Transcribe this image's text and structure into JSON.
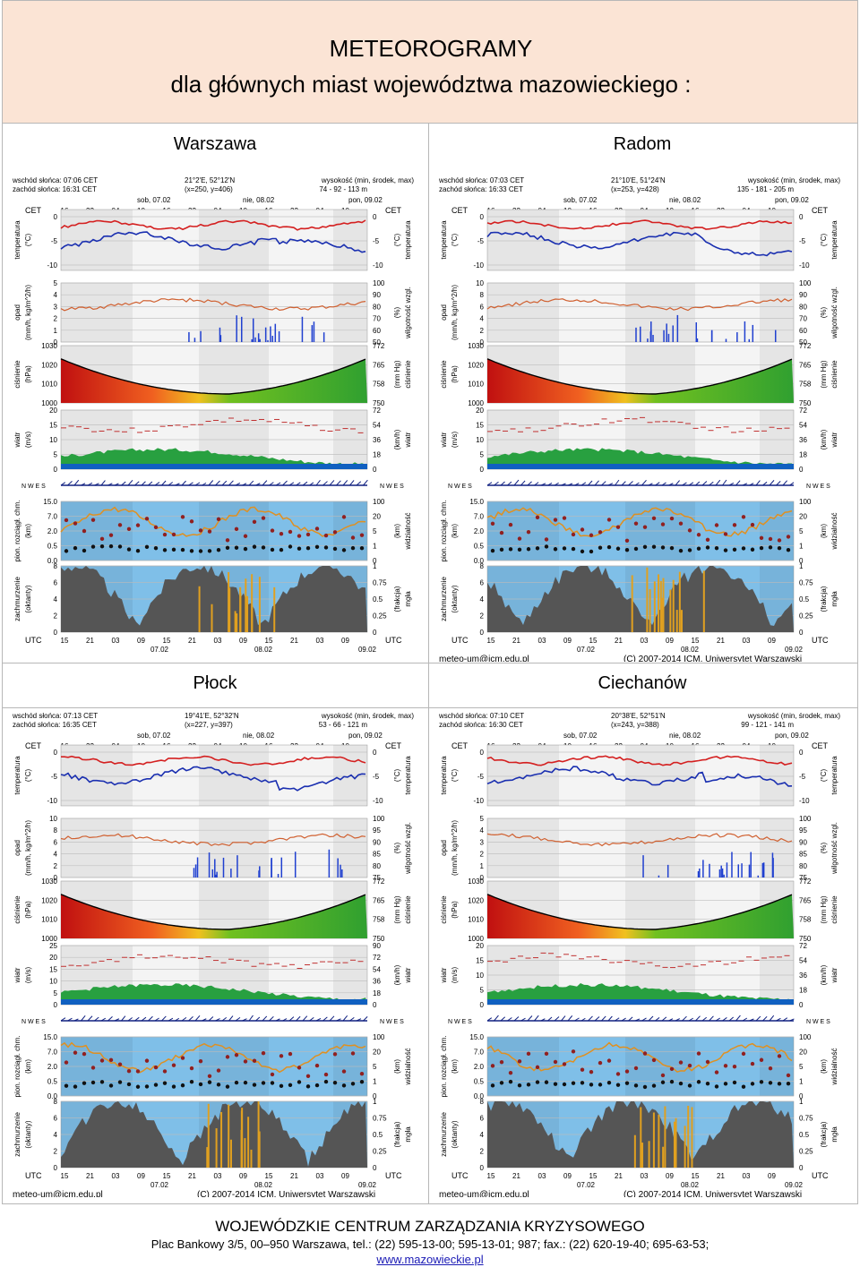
{
  "header": {
    "title": "METEOROGRAMY",
    "subtitle": "dla głównych miast województwa mazowieckiego :"
  },
  "cities": [
    {
      "name": "Warszawa",
      "sunrise": "wschód słońca: 07:06 CET",
      "sunset": "zachód słońca: 16:31 CET",
      "coords": "21°2'E, 52°12'N",
      "grid": "(x=250, y=406)",
      "alt_label": "wysokość (min, środek, max)",
      "alt": "74 - 92 - 113 m",
      "t_ticks": [
        "0",
        "-5",
        "-10"
      ],
      "p_ticks": [
        "5",
        "4",
        "3",
        "2",
        "1",
        "0"
      ],
      "h_ticks": [
        "100",
        "90",
        "80",
        "70",
        "60",
        "50"
      ],
      "w_ticks": [
        "20",
        "15",
        "10",
        "5",
        "0"
      ],
      "wk_ticks": [
        "72",
        "54",
        "36",
        "18",
        "0"
      ]
    },
    {
      "name": "Radom",
      "sunrise": "wschód słońca: 07:03 CET",
      "sunset": "zachód słońca: 16:33 CET",
      "coords": "21°10'E, 51°24'N",
      "grid": "(x=253, y=428)",
      "alt_label": "wysokość (min, środek, max)",
      "alt": "135 - 181 - 205 m",
      "t_ticks": [
        "0",
        "-5",
        "-10"
      ],
      "p_ticks": [
        "10",
        "8",
        "6",
        "4",
        "2",
        "0"
      ],
      "h_ticks": [
        "100",
        "90",
        "80",
        "70",
        "60",
        "50"
      ],
      "w_ticks": [
        "20",
        "15",
        "10",
        "5",
        "0"
      ],
      "wk_ticks": [
        "72",
        "54",
        "36",
        "18",
        "0"
      ]
    },
    {
      "name": "Płock",
      "sunrise": "wschód słońca: 07:13 CET",
      "sunset": "zachód słońca: 16:35 CET",
      "coords": "19°41'E, 52°32'N",
      "grid": "(x=227, y=397)",
      "alt_label": "wysokość (min, środek, max)",
      "alt": "53 - 66 - 121 m",
      "t_ticks": [
        "0",
        "-5",
        "-10"
      ],
      "p_ticks": [
        "10",
        "8",
        "6",
        "4",
        "2",
        "0"
      ],
      "h_ticks": [
        "100",
        "95",
        "90",
        "85",
        "80",
        "75"
      ],
      "w_ticks": [
        "25",
        "20",
        "15",
        "10",
        "5",
        "0"
      ],
      "wk_ticks": [
        "90",
        "72",
        "54",
        "36",
        "18",
        "0"
      ]
    },
    {
      "name": "Ciechanów",
      "sunrise": "wschód słońca: 07:10 CET",
      "sunset": "zachód słońca: 16:30 CET",
      "coords": "20°38'E, 52°51'N",
      "grid": "(x=243, y=388)",
      "alt_label": "wysokość (min, środek, max)",
      "alt": "99 - 121 - 141 m",
      "t_ticks": [
        "0",
        "-5",
        "-10"
      ],
      "p_ticks": [
        "5",
        "4",
        "3",
        "2",
        "1",
        "0"
      ],
      "h_ticks": [
        "100",
        "95",
        "90",
        "85",
        "80",
        "75"
      ],
      "w_ticks": [
        "20",
        "15",
        "10",
        "5",
        "0"
      ],
      "wk_ticks": [
        "72",
        "54",
        "36",
        "18",
        "0"
      ]
    }
  ],
  "common": {
    "cet": "CET",
    "utc": "UTC",
    "days_top": [
      "sob, 07.02",
      "nie, 08.02",
      "pon, 09.02"
    ],
    "hours_top": [
      "16",
      "22",
      "04",
      "10",
      "16",
      "22",
      "04",
      "10",
      "16",
      "22",
      "04",
      "10"
    ],
    "hours_bottom": [
      "15",
      "21",
      "03",
      "09",
      "15",
      "21",
      "03",
      "09",
      "15",
      "21",
      "03",
      "09"
    ],
    "days_bottom": [
      "07.02",
      "08.02",
      "09.02"
    ],
    "label_temp": "temperatura",
    "unit_c": "(°C)",
    "label_opad": "opad",
    "unit_opad": "(mm/h, kg/m^2/h)",
    "label_wilg": "wilgotność wzgl.",
    "unit_pct": "(%)",
    "label_cisn": "ciśnienie",
    "unit_hpa": "(hPa)",
    "unit_mmhg": "(mm Hg)",
    "p_ticks_hpa": [
      "1030",
      "1020",
      "1010",
      "1000"
    ],
    "p_ticks_mmhg": [
      "772",
      "765",
      "758",
      "750"
    ],
    "label_wiatr": "wiatr",
    "unit_ms": "(m/s)",
    "unit_kmh": "(km/h)",
    "rose": "N W E S",
    "label_chm": "pion. rozciągł. chm.",
    "unit_km": "(km)",
    "chm_ticks": [
      "15.0",
      "7.0",
      "2.0",
      "0.5",
      "0.0"
    ],
    "label_widz": "widzialność",
    "widz_ticks": [
      "100",
      "20",
      "5",
      "1",
      "0"
    ],
    "label_zach": "zachmurzenie",
    "unit_okt": "(oktanty)",
    "zach_ticks": [
      "8",
      "6",
      "4",
      "2",
      "0"
    ],
    "label_mgla": "mgła",
    "unit_frak": "(frakcja)",
    "mgla_ticks": [
      "1",
      "0.75",
      "0.5",
      "0.25",
      "0"
    ],
    "email": "meteo-um@icm.edu.pl",
    "copyright": "(C) 2007-2014 ICM, Uniwersytet Warszawski"
  },
  "footer": {
    "org": "WOJEWÓDZKIE CENTRUM ZARZĄDZANIA KRYZYSOWEGO",
    "address": "Plac Bankowy 3/5, 00–950 Warszawa, tel.: (22) 595-13-00; 595-13-01; 987; fax.: (22) 620-19-40; 695-63-53;",
    "url": "www.mazowieckie.pl"
  },
  "colors": {
    "header_bg": "#fbe4d5",
    "temp_red": "#d42020",
    "temp_blue": "#1a2fb0",
    "panel_blue": "#7fbfe8",
    "night": "#d8d8d8",
    "cloud": "#555555",
    "bar": "#e0a020"
  }
}
